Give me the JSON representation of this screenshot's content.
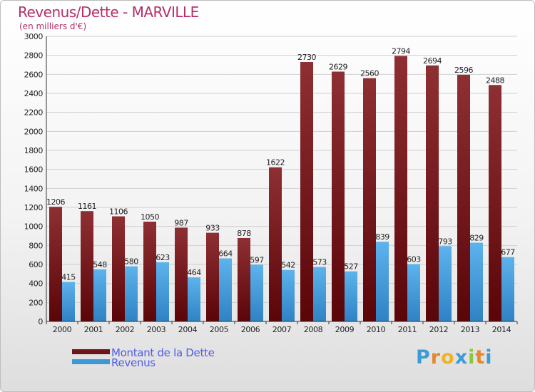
{
  "title": "Revenus/Dette - MARVILLE",
  "subtitle": "(en milliers d'€)",
  "colors": {
    "dette": "#7a1a1e",
    "revenus": "#3d98d8",
    "title": "#b3306a",
    "legend": "#4f5de3"
  },
  "logo": {
    "letters": [
      "P",
      "r",
      "o",
      "x",
      "i",
      "t",
      "i"
    ]
  },
  "chart_data": {
    "type": "bar",
    "title": "Revenus/Dette - MARVILLE",
    "subtitle": "(en milliers d'€)",
    "categories": [
      "2000",
      "2001",
      "2002",
      "2003",
      "2004",
      "2005",
      "2006",
      "2007",
      "2008",
      "2009",
      "2010",
      "2011",
      "2012",
      "2013",
      "2014"
    ],
    "series": [
      {
        "name": "Montant de la Dette",
        "values": [
          1206,
          1161,
          1106,
          1050,
          987,
          933,
          878,
          1622,
          2730,
          2629,
          2560,
          2794,
          2694,
          2596,
          2488
        ]
      },
      {
        "name": "Revenus",
        "values": [
          415,
          548,
          580,
          623,
          464,
          664,
          597,
          542,
          573,
          527,
          839,
          603,
          793,
          829,
          677
        ]
      }
    ],
    "ylim": [
      0,
      3000
    ],
    "yticks": [
      0,
      200,
      400,
      600,
      800,
      1000,
      1200,
      1400,
      1600,
      1800,
      2000,
      2200,
      2400,
      2600,
      2800,
      3000
    ],
    "grid": true,
    "legend_position": "bottom-left"
  }
}
